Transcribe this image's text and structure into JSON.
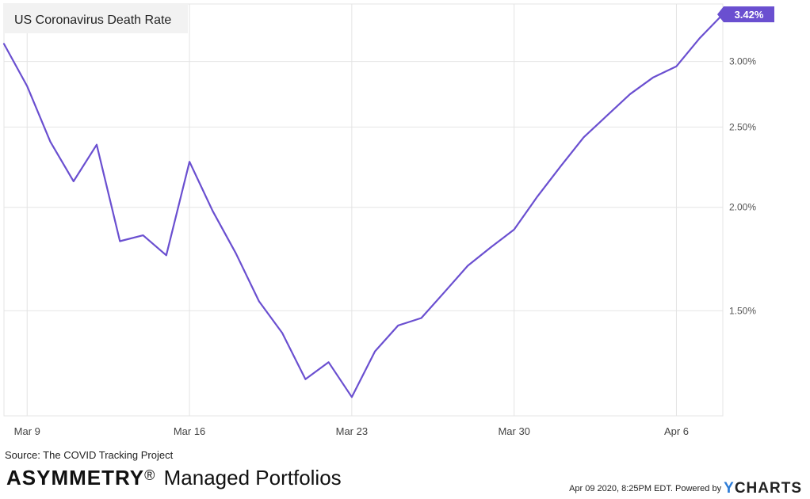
{
  "chart_data": {
    "type": "line",
    "title": "US Coronavirus Death Rate",
    "x_tick_labels": [
      "Mar 9",
      "Mar 16",
      "Mar 23",
      "Mar 30",
      "Apr 6"
    ],
    "x_tick_dates": [
      "2020-03-09",
      "2020-03-16",
      "2020-03-23",
      "2020-03-30",
      "2020-04-06"
    ],
    "y_tick_labels": [
      "1.50%",
      "2.00%",
      "2.50%",
      "3.00%"
    ],
    "y_ticks": [
      1.5,
      2.0,
      2.5,
      3.0
    ],
    "ylim": [
      1.12,
      3.52
    ],
    "y_scale": "log",
    "grid": true,
    "line_color": "#6a4fd0",
    "series": [
      {
        "dates": [
          "2020-03-08",
          "2020-03-09",
          "2020-03-10",
          "2020-03-11",
          "2020-03-12",
          "2020-03-13",
          "2020-03-14",
          "2020-03-15",
          "2020-03-16",
          "2020-03-17",
          "2020-03-18",
          "2020-03-19",
          "2020-03-20",
          "2020-03-21",
          "2020-03-22",
          "2020-03-23",
          "2020-03-24",
          "2020-03-25",
          "2020-03-26",
          "2020-03-27",
          "2020-03-28",
          "2020-03-29",
          "2020-03-30",
          "2020-03-31",
          "2020-04-01",
          "2020-04-02",
          "2020-04-03",
          "2020-04-04",
          "2020-04-05",
          "2020-04-06",
          "2020-04-07",
          "2020-04-08"
        ],
        "values": [
          3.15,
          2.8,
          2.4,
          2.15,
          2.38,
          1.82,
          1.85,
          1.75,
          2.27,
          1.98,
          1.76,
          1.54,
          1.41,
          1.24,
          1.3,
          1.18,
          1.34,
          1.44,
          1.47,
          1.58,
          1.7,
          1.79,
          1.88,
          2.06,
          2.24,
          2.43,
          2.58,
          2.74,
          2.87,
          2.96,
          3.2,
          3.42
        ]
      }
    ],
    "last_value_label": "3.42%"
  },
  "source_text": "Source: The COVID Tracking Project",
  "brand": {
    "name": "ASYMMETRY",
    "registered": "®",
    "rest": " Managed Portfolios"
  },
  "footer": {
    "timestamp": "Apr 09 2020, 8:25PM EDT.",
    "powered_by": "Powered by",
    "logo_first": "Y",
    "logo_rest": "CHARTS"
  }
}
